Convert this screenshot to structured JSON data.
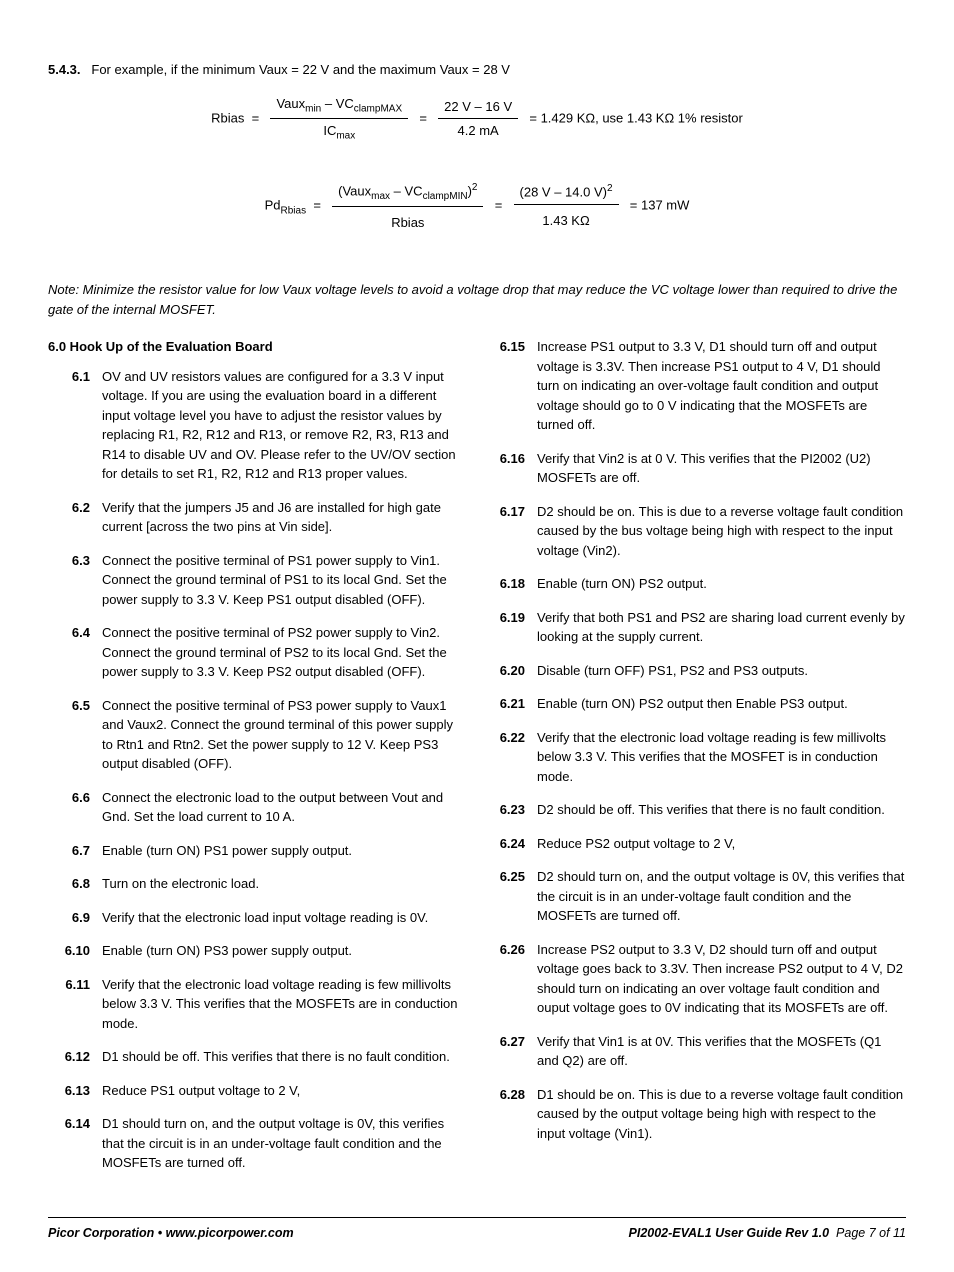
{
  "section543": {
    "label": "5.4.3.",
    "text": "For example, if the minimum Vaux = 22 V and the maximum Vaux = 28 V"
  },
  "eq1": {
    "lhs": "Rbias",
    "num1_a": "Vaux",
    "num1_a_sub": "min",
    "num1_b": " – VC",
    "num1_b_sub": "clampMAX",
    "den1": "IC",
    "den1_sub": "max",
    "num2": "22 V – 16 V",
    "den2": "4.2 mA",
    "result": "= 1.429 KΩ, use 1.43 KΩ 1% resistor"
  },
  "eq2": {
    "lhs": "Pd",
    "lhs_sub": "Rbias",
    "num1_a": "(Vaux",
    "num1_a_sub": "max",
    "num1_b": " – VC",
    "num1_b_sub": "clampMIN",
    "num1_c": ")",
    "num1_sup": "2",
    "den1": "Rbias",
    "num2": "(28 V – 14.0 V)",
    "num2_sup": "2",
    "den2": "1.43 KΩ",
    "result": "= 137 mW"
  },
  "note": "Note: Minimize the resistor value for low Vaux voltage levels to avoid a voltage drop that may reduce the VC voltage lower than required to drive the gate of the internal MOSFET.",
  "heading6": "6.0 Hook Up of the Evaluation Board",
  "left_items": [
    {
      "num": "6.1",
      "text": "OV and UV resistors values are configured for a 3.3 V input voltage. If you are using the evaluation board in a different input voltage level you have to adjust the resistor values by replacing R1, R2, R12 and R13, or remove R2, R3, R13 and R14 to disable UV and OV. Please refer to the UV/OV section for details to set R1, R2, R12 and R13 proper values."
    },
    {
      "num": "6.2",
      "text": "Verify that the jumpers J5 and J6 are installed for high gate current [across the two pins at Vin side]."
    },
    {
      "num": "6.3",
      "text": "Connect the positive terminal of PS1 power supply to Vin1. Connect the ground terminal of PS1 to its local Gnd. Set the power supply to 3.3 V. Keep PS1 output disabled (OFF)."
    },
    {
      "num": "6.4",
      "text": "Connect the positive terminal of PS2 power supply to Vin2. Connect the ground terminal of PS2 to its local Gnd. Set the power supply to 3.3 V. Keep PS2 output disabled (OFF)."
    },
    {
      "num": "6.5",
      "text": "Connect the positive terminal of PS3 power supply to Vaux1 and Vaux2. Connect the ground terminal of this power supply to Rtn1 and Rtn2. Set the power supply to 12 V. Keep PS3 output disabled (OFF)."
    },
    {
      "num": "6.6",
      "text": "Connect the electronic load to the output between Vout and Gnd. Set the load current to 10 A."
    },
    {
      "num": "6.7",
      "text": "Enable (turn ON) PS1 power supply output."
    },
    {
      "num": "6.8",
      "text": "Turn on the electronic load."
    },
    {
      "num": "6.9",
      "text": "Verify that the electronic load input voltage reading is 0V."
    },
    {
      "num": "6.10",
      "text": "Enable (turn ON) PS3 power supply output."
    },
    {
      "num": "6.11",
      "text": "Verify that the electronic load voltage reading is few millivolts below 3.3 V. This verifies that the MOSFETs are in conduction mode."
    },
    {
      "num": "6.12",
      "text": "D1 should be off. This verifies that there is no fault condition."
    },
    {
      "num": "6.13",
      "text": "Reduce PS1 output voltage to 2 V,"
    },
    {
      "num": "6.14",
      "text": "D1 should turn on, and the output voltage is 0V, this verifies that the circuit is in an under-voltage fault condition and the MOSFETs are turned off."
    }
  ],
  "right_items": [
    {
      "num": "6.15",
      "text": "Increase PS1 output to 3.3 V, D1 should turn off and output voltage is 3.3V.  Then increase PS1 output to 4 V, D1 should turn on indicating an over-voltage fault condition and output voltage should go to 0 V indicating that the MOSFETs are turned off."
    },
    {
      "num": "6.16",
      "text": "Verify that Vin2 is at 0 V. This verifies that the PI2002 (U2) MOSFETs are off."
    },
    {
      "num": "6.17",
      "text": "D2 should be on. This is due to a reverse voltage fault condition caused by the bus voltage being high with respect to the input voltage (Vin2)."
    },
    {
      "num": "6.18",
      "text": "Enable (turn ON) PS2 output."
    },
    {
      "num": "6.19",
      "text": "Verify that both PS1 and PS2 are sharing load current evenly by looking at the supply current."
    },
    {
      "num": "6.20",
      "text": "Disable (turn OFF) PS1, PS2 and PS3 outputs."
    },
    {
      "num": "6.21",
      "text": "Enable (turn ON) PS2 output then Enable PS3 output."
    },
    {
      "num": "6.22",
      "text": "Verify that the electronic load voltage reading is few millivolts below 3.3 V. This verifies that the MOSFET is in conduction mode."
    },
    {
      "num": "6.23",
      "text": "D2 should be off. This verifies that there is no fault condition."
    },
    {
      "num": "6.24",
      "text": "Reduce PS2 output voltage to 2 V,"
    },
    {
      "num": "6.25",
      "text": "D2 should turn on, and the output voltage is 0V, this verifies that the circuit is in an under-voltage fault condition and the MOSFETs are turned off."
    },
    {
      "num": "6.26",
      "text": "Increase PS2 output to 3.3 V, D2 should turn off and output voltage goes back to 3.3V. Then increase PS2 output to 4 V, D2 should turn on indicating an over voltage fault condition and ouput voltage goes to 0V indicating that its MOSFETs are off."
    },
    {
      "num": "6.27",
      "text": "Verify that Vin1 is at 0V. This verifies that the MOSFETs (Q1 and Q2) are off."
    },
    {
      "num": "6.28",
      "text": "D1 should be on. This is due to a reverse voltage fault condition caused by the output voltage being high with respect to the input voltage (Vin1)."
    }
  ],
  "footer": {
    "left_company": "Picor Corporation • www.picorpower.com",
    "right_guide": "PI2002-EVAL1 User Guide  Rev 1.0",
    "page": "Page 7 of 11"
  }
}
